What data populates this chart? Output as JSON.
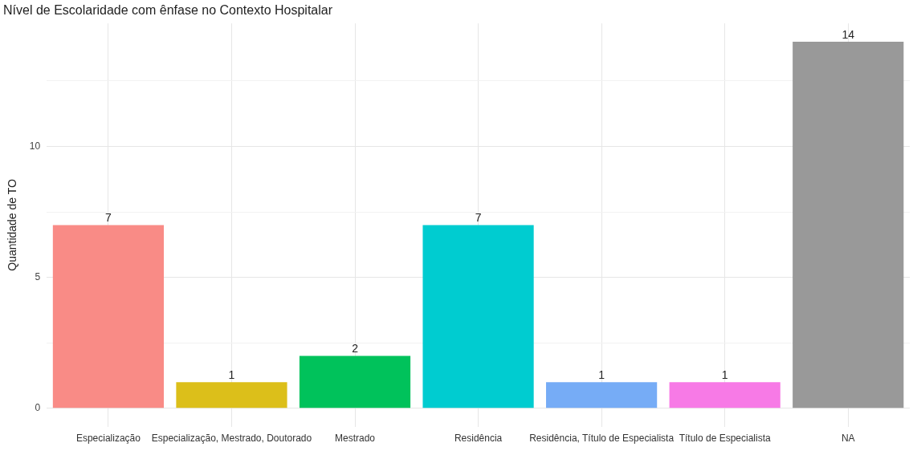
{
  "chart_data": {
    "type": "bar",
    "title": "Nível de Escolaridade com ênfase no Contexto Hospitalar",
    "ylabel": "Quantidade de TO",
    "categories": [
      "Especialização",
      "Especialização, Mestrado, Doutorado",
      "Mestrado",
      "Residência",
      "Residência, Título de Especialista",
      "Título de Especialista",
      "NA"
    ],
    "values": [
      7,
      1,
      2,
      7,
      1,
      1,
      14
    ],
    "colors": [
      "#f98b86",
      "#dcbf1a",
      "#00c25b",
      "#00ccd0",
      "#76acf6",
      "#f77ae6",
      "#999999"
    ],
    "ylim": [
      -0.7,
      14.7
    ],
    "yticks": [
      0,
      {
        "value": 2.5,
        "label": null
      },
      5,
      {
        "value": 7.5,
        "label": null
      },
      10,
      {
        "value": 12.5,
        "label": null
      }
    ],
    "grid": true,
    "data_labels": true,
    "legend": false
  }
}
